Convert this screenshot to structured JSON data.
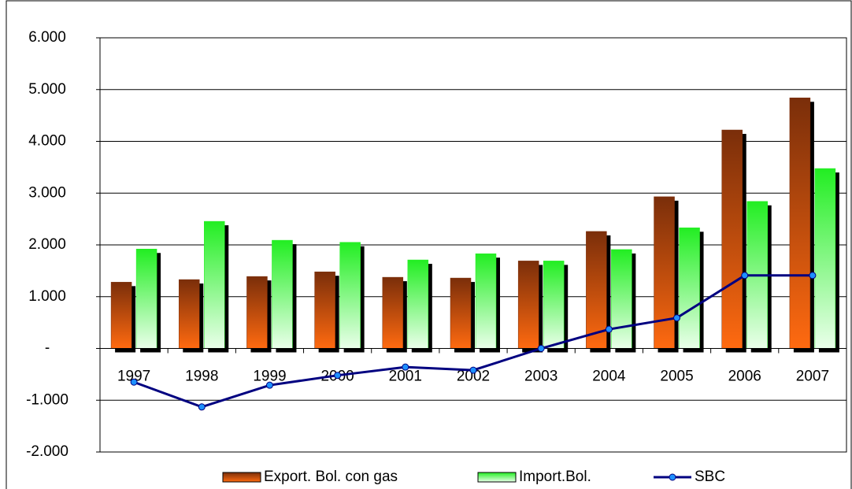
{
  "chart_data": {
    "type": "bar-line",
    "categories": [
      "1997",
      "1998",
      "1999",
      "2000",
      "2001",
      "2002",
      "2003",
      "2004",
      "2005",
      "2006",
      "2007"
    ],
    "series": [
      {
        "name": "Export. Bol. con gas",
        "type": "bar",
        "color": "#7a2e0a",
        "values": [
          1280,
          1330,
          1390,
          1480,
          1375,
          1360,
          1690,
          2260,
          2930,
          4220,
          4840
        ]
      },
      {
        "name": "Import.Bol.",
        "type": "bar",
        "color": "#22ee22",
        "values": [
          1920,
          2455,
          2090,
          2050,
          1710,
          1830,
          1690,
          1910,
          2330,
          2840,
          3475
        ]
      },
      {
        "name": "SBC",
        "type": "line",
        "color": "#000080",
        "values": [
          -650,
          -1130,
          -710,
          -520,
          -360,
          -420,
          0,
          370,
          590,
          1410,
          1410
        ]
      }
    ],
    "ylim": [
      -2000,
      6000
    ],
    "yticks": [
      {
        "value": -2000,
        "label": "-2.000"
      },
      {
        "value": -1000,
        "label": "-1.000"
      },
      {
        "value": 0,
        "label": "-"
      },
      {
        "value": 1000,
        "label": "1.000"
      },
      {
        "value": 2000,
        "label": "2.000"
      },
      {
        "value": 3000,
        "label": "3.000"
      },
      {
        "value": 4000,
        "label": "4.000"
      },
      {
        "value": 5000,
        "label": "5.000"
      },
      {
        "value": 6000,
        "label": "6.000"
      }
    ],
    "grid": true
  }
}
